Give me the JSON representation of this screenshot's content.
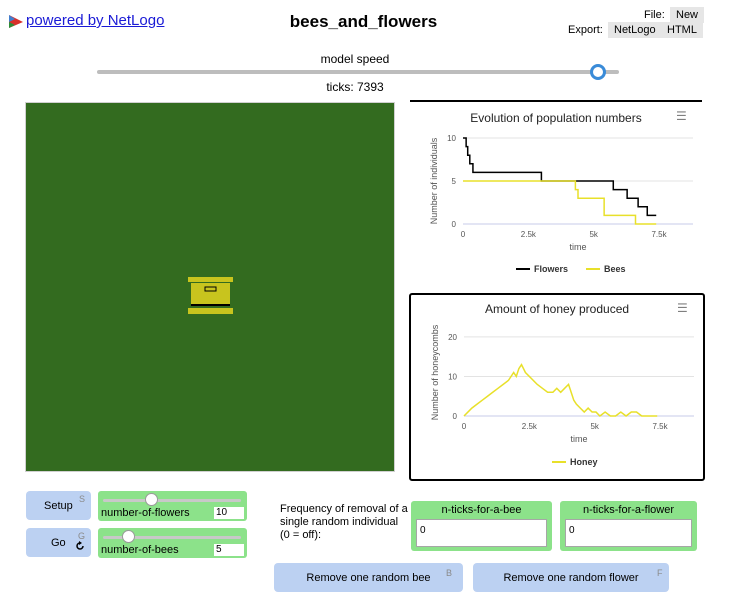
{
  "header": {
    "logo_icon": "netlogo-logo-icon",
    "logo_text": "powered by NetLogo",
    "title": "bees_and_flowers",
    "file_label": "File:",
    "file_new_label": "New",
    "export_label": "Export:",
    "export_netlogo_label": "NetLogo",
    "export_html_label": "HTML"
  },
  "speed": {
    "label": "model speed",
    "level": 0.96,
    "ticks_text": "ticks: 7393"
  },
  "world": {
    "background": "#336b1f",
    "hive_icon": "beehive-icon",
    "hive_color": "#c8c41e"
  },
  "plots": [
    {
      "title": "Evolution of population numbers",
      "menu_icon": "hamburger-menu-icon",
      "chart_data": {
        "type": "line",
        "title": "Evolution of population numbers",
        "xlabel": "time",
        "ylabel": "Number of individuals",
        "x_ticks": [
          "0",
          "2.5k",
          "5k",
          "7.5k"
        ],
        "y_ticks": [
          "0",
          "5",
          "10"
        ],
        "xlim": [
          0,
          8800
        ],
        "ylim": [
          0,
          10
        ],
        "grid": "horizontal",
        "legend_position": "bottom",
        "series": [
          {
            "name": "Flowers",
            "color": "#000000",
            "step": true,
            "x": [
              0,
              120,
              180,
              260,
              380,
              3000,
              4350,
              5750,
              6280,
              6700,
              7050,
              7393
            ],
            "y": [
              10,
              9,
              8,
              7,
              6,
              5,
              5,
              4,
              3,
              2,
              1,
              1
            ]
          },
          {
            "name": "Bees",
            "color": "#e8e02a",
            "step": true,
            "x": [
              0,
              4300,
              4400,
              5400,
              6600,
              7100,
              7393
            ],
            "y": [
              5,
              4,
              3,
              1,
              0,
              0,
              0
            ]
          }
        ]
      }
    },
    {
      "title": "Amount of honey produced",
      "menu_icon": "hamburger-menu-icon",
      "chart_data": {
        "type": "line",
        "title": "Amount of honey produced",
        "xlabel": "time",
        "ylabel": "Number of honeycombs",
        "x_ticks": [
          "0",
          "2.5k",
          "5k",
          "7.5k"
        ],
        "y_ticks": [
          "0",
          "10",
          "20"
        ],
        "xlim": [
          0,
          8800
        ],
        "ylim": [
          0,
          22
        ],
        "grid": "horizontal",
        "legend_position": "bottom",
        "series": [
          {
            "name": "Honey",
            "color": "#e8e02a",
            "step": false,
            "x": [
              0,
              150,
              300,
              500,
              700,
              900,
              1100,
              1300,
              1500,
              1700,
              1900,
              2000,
              2100,
              2200,
              2350,
              2500,
              2650,
              2800,
              3000,
              3200,
              3400,
              3550,
              3700,
              3850,
              4000,
              4100,
              4200,
              4300,
              4450,
              4600,
              4750,
              4900,
              5050,
              5200,
              5400,
              5600,
              5800,
              6000,
              6200,
              6400,
              6600,
              6800,
              7000,
              7393
            ],
            "y": [
              0,
              1,
              2,
              3,
              4,
              5,
              6,
              7,
              8,
              9,
              11,
              10,
              12,
              13,
              11,
              10,
              9,
              8,
              7,
              6,
              6,
              7,
              6,
              7,
              8,
              6,
              4,
              3,
              2,
              1,
              2,
              1,
              1,
              0,
              1,
              0,
              0,
              1,
              0,
              1,
              1,
              0,
              0,
              0
            ]
          }
        ]
      }
    }
  ],
  "widgets": {
    "setup": {
      "label": "Setup",
      "key": "S"
    },
    "go": {
      "label": "Go",
      "key": "G",
      "forever_icon": "forever-loop-icon"
    },
    "flowers_slider": {
      "label": "number-of-flowers",
      "value": "10",
      "level": 0.35
    },
    "bees_slider": {
      "label": "number-of-bees",
      "value": "5",
      "level": 0.18
    },
    "note": "Frequency of removal of a single random individual (0 = off):",
    "bee_input": {
      "label": "n-ticks-for-a-bee",
      "value": "0"
    },
    "flower_input": {
      "label": "n-ticks-for-a-flower",
      "value": "0"
    },
    "remove_bee": {
      "label": "Remove one random bee",
      "key": "B"
    },
    "remove_flower": {
      "label": "Remove one random flower",
      "key": "F"
    }
  }
}
